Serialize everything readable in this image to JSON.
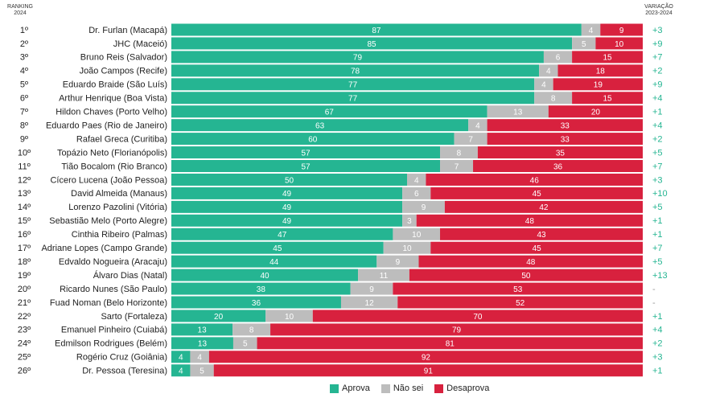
{
  "header": {
    "ranking_line1": "RANKING",
    "ranking_line2": "2024",
    "variation_line1": "VARIAÇÃO",
    "variation_line2": "2023-2024"
  },
  "colors": {
    "aprova": "#25b592",
    "nao_sei": "#bdbdbd",
    "desaprova": "#d8213e",
    "positive": "#25b592",
    "negative": "#d8213e",
    "neutral": "#999999"
  },
  "legend": [
    {
      "label": "Aprova",
      "color": "#25b592"
    },
    {
      "label": "Não sei",
      "color": "#bdbdbd"
    },
    {
      "label": "Desaprova",
      "color": "#d8213e"
    }
  ],
  "chart_data": {
    "type": "bar",
    "stacked": true,
    "orientation": "horizontal",
    "series_names": [
      "Aprova",
      "Não sei",
      "Desaprova"
    ],
    "rows": [
      {
        "rank": "1º",
        "name": "Dr. Furlan (Macapá)",
        "aprova": 87,
        "nao_sei": 4,
        "desaprova": 9,
        "variation": "+3"
      },
      {
        "rank": "2º",
        "name": "JHC (Maceió)",
        "aprova": 85,
        "nao_sei": 5,
        "desaprova": 10,
        "variation": "+9"
      },
      {
        "rank": "3º",
        "name": "Bruno Reis (Salvador)",
        "aprova": 79,
        "nao_sei": 6,
        "desaprova": 15,
        "variation": "+7"
      },
      {
        "rank": "4º",
        "name": "João Campos (Recife)",
        "aprova": 78,
        "nao_sei": 4,
        "desaprova": 18,
        "variation": "+2"
      },
      {
        "rank": "5º",
        "name": "Eduardo Braide (São Luís)",
        "aprova": 77,
        "nao_sei": 4,
        "desaprova": 19,
        "variation": "+9"
      },
      {
        "rank": "6º",
        "name": "Arthur Henrique (Boa Vista)",
        "aprova": 77,
        "nao_sei": 8,
        "desaprova": 15,
        "variation": "+4"
      },
      {
        "rank": "7º",
        "name": "Hildon Chaves (Porto Velho)",
        "aprova": 67,
        "nao_sei": 13,
        "desaprova": 20,
        "variation": "+1"
      },
      {
        "rank": "8º",
        "name": "Eduardo Paes (Rio de Janeiro)",
        "aprova": 63,
        "nao_sei": 4,
        "desaprova": 33,
        "variation": "+4"
      },
      {
        "rank": "9º",
        "name": "Rafael Greca (Curitiba)",
        "aprova": 60,
        "nao_sei": 7,
        "desaprova": 33,
        "variation": "+2"
      },
      {
        "rank": "10º",
        "name": "Topázio Neto (Florianópolis)",
        "aprova": 57,
        "nao_sei": 8,
        "desaprova": 35,
        "variation": "+5"
      },
      {
        "rank": "11º",
        "name": "Tião Bocalom (Rio Branco)",
        "aprova": 57,
        "nao_sei": 7,
        "desaprova": 36,
        "variation": "+7"
      },
      {
        "rank": "12º",
        "name": "Cícero Lucena (João Pessoa)",
        "aprova": 50,
        "nao_sei": 4,
        "desaprova": 46,
        "variation": "+3"
      },
      {
        "rank": "13º",
        "name": "David Almeida (Manaus)",
        "aprova": 49,
        "nao_sei": 6,
        "desaprova": 45,
        "variation": "+10"
      },
      {
        "rank": "14º",
        "name": "Lorenzo Pazolini (Vitória)",
        "aprova": 49,
        "nao_sei": 9,
        "desaprova": 42,
        "variation": "+5"
      },
      {
        "rank": "15º",
        "name": "Sebastião Melo (Porto Alegre)",
        "aprova": 49,
        "nao_sei": 3,
        "desaprova": 48,
        "variation": "+1"
      },
      {
        "rank": "16º",
        "name": "Cinthia Ribeiro (Palmas)",
        "aprova": 47,
        "nao_sei": 10,
        "desaprova": 43,
        "variation": "+1"
      },
      {
        "rank": "17º",
        "name": "Adriane Lopes (Campo Grande)",
        "aprova": 45,
        "nao_sei": 10,
        "desaprova": 45,
        "variation": "+7"
      },
      {
        "rank": "18º",
        "name": "Edvaldo Nogueira (Aracaju)",
        "aprova": 44,
        "nao_sei": 9,
        "desaprova": 48,
        "variation": "+5"
      },
      {
        "rank": "19º",
        "name": "Álvaro Dias (Natal)",
        "aprova": 40,
        "nao_sei": 11,
        "desaprova": 50,
        "variation": "+13"
      },
      {
        "rank": "20º",
        "name": "Ricardo Nunes (São Paulo)",
        "aprova": 38,
        "nao_sei": 9,
        "desaprova": 53,
        "variation": "-"
      },
      {
        "rank": "21º",
        "name": "Fuad Noman (Belo Horizonte)",
        "aprova": 36,
        "nao_sei": 12,
        "desaprova": 52,
        "variation": "-"
      },
      {
        "rank": "22º",
        "name": "Sarto (Fortaleza)",
        "aprova": 20,
        "nao_sei": 10,
        "desaprova": 70,
        "variation": "+1"
      },
      {
        "rank": "23º",
        "name": "Emanuel Pinheiro (Cuiabá)",
        "aprova": 13,
        "nao_sei": 8,
        "desaprova": 79,
        "variation": "+4"
      },
      {
        "rank": "24º",
        "name": "Edmilson Rodrigues (Belém)",
        "aprova": 13,
        "nao_sei": 5,
        "desaprova": 81,
        "variation": "+2"
      },
      {
        "rank": "25º",
        "name": "Rogério Cruz (Goiânia)",
        "aprova": 4,
        "nao_sei": 4,
        "desaprova": 92,
        "variation": "+3"
      },
      {
        "rank": "26º",
        "name": "Dr. Pessoa (Teresina)",
        "aprova": 4,
        "nao_sei": 5,
        "desaprova": 91,
        "variation": "+1"
      }
    ]
  }
}
